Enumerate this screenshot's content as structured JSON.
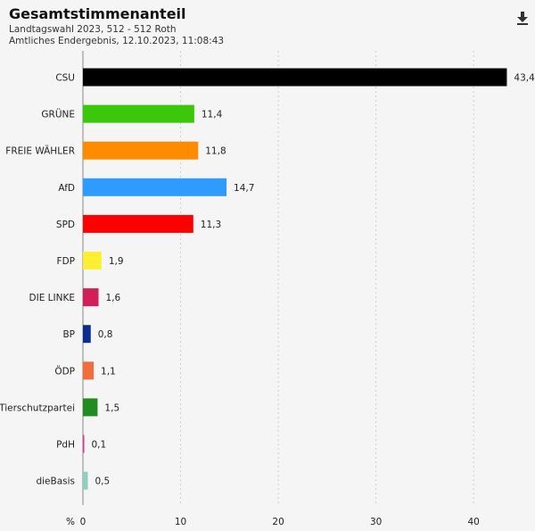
{
  "header": {
    "title": "Gesamtstimmenanteil",
    "subtitle_line1": "Landtagswahl 2023, 512 - 512 Roth",
    "subtitle_line2": "Amtliches Endergebnis, 12.10.2023, 11:08:43",
    "download_icon": "download-icon"
  },
  "chart_data": {
    "type": "bar",
    "orientation": "horizontal",
    "categories": [
      "CSU",
      "GRÜNE",
      "FREIE WÄHLER",
      "AfD",
      "SPD",
      "FDP",
      "DIE LINKE",
      "BP",
      "ÖDP",
      "Tierschutzpartei",
      "PdH",
      "dieBasis"
    ],
    "values": [
      43.4,
      11.4,
      11.8,
      14.7,
      11.3,
      1.9,
      1.6,
      0.8,
      1.1,
      1.5,
      0.1,
      0.5
    ],
    "value_labels": [
      "43,4",
      "11,4",
      "11,8",
      "14,7",
      "11,3",
      "1,9",
      "1,6",
      "0,8",
      "1,1",
      "1,5",
      "0,1",
      "0,5"
    ],
    "colors": [
      "#000000",
      "#3cc80a",
      "#ff8c00",
      "#2e9bff",
      "#ff0000",
      "#ffee33",
      "#d21f5a",
      "#0a2f8c",
      "#f26d3d",
      "#228b22",
      "#e0308c",
      "#8ecfc0"
    ],
    "xlim": [
      0,
      44
    ],
    "xticks": [
      0,
      10,
      20,
      30,
      40
    ],
    "xunit": "%",
    "grid": true
  }
}
